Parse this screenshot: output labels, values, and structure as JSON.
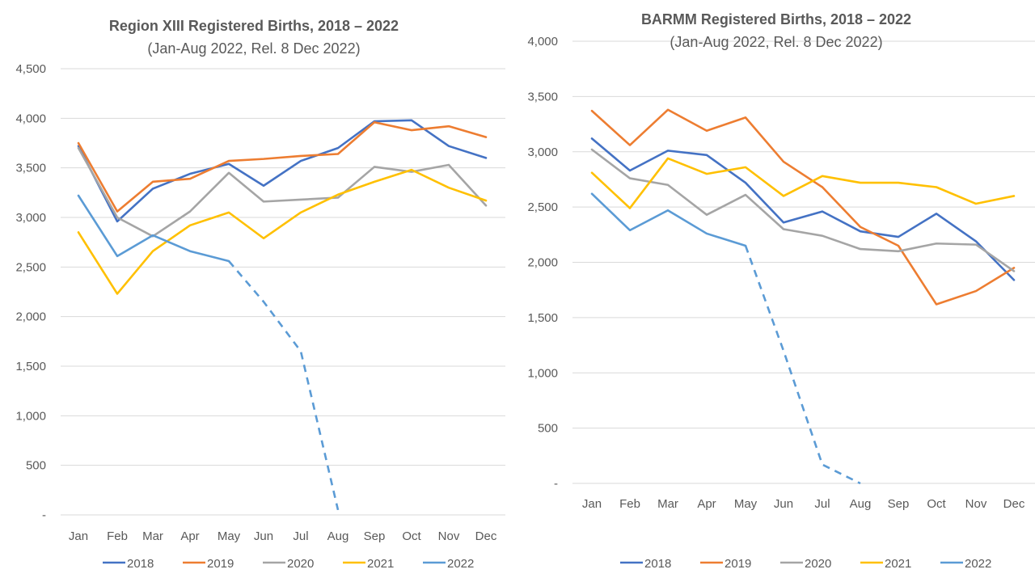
{
  "chart_data": [
    {
      "type": "line",
      "title": "Region XIII Registered Births, 2018 – 2022",
      "subtitle": "(Jan-Aug 2022, Rel. 8 Dec 2022)",
      "xlabel": "",
      "ylabel": "",
      "ylim": [
        0,
        4500
      ],
      "yticks": [
        0,
        500,
        1000,
        1500,
        2000,
        2500,
        3000,
        3500,
        4000,
        4500
      ],
      "ytick_labels": [
        "-",
        "500",
        "1,000",
        "1,500",
        "2,000",
        "2,500",
        "3,000",
        "3,500",
        "4,000",
        "4,500"
      ],
      "grid": true,
      "legend": "bottom",
      "categories": [
        "Jan",
        "Feb",
        "Mar",
        "Apr",
        "May",
        "Jun",
        "Jul",
        "Aug",
        "Sep",
        "Oct",
        "Nov",
        "Dec"
      ],
      "series": [
        {
          "name": "2018",
          "color": "#4472C4",
          "dashed_from": null,
          "values": [
            3720,
            2960,
            3290,
            3440,
            3540,
            3320,
            3570,
            3700,
            3970,
            3980,
            3720,
            3600
          ]
        },
        {
          "name": "2019",
          "color": "#ED7D31",
          "dashed_from": null,
          "values": [
            3750,
            3060,
            3360,
            3390,
            3570,
            3590,
            3620,
            3640,
            3960,
            3880,
            3920,
            3810
          ]
        },
        {
          "name": "2020",
          "color": "#A5A5A5",
          "dashed_from": null,
          "values": [
            3700,
            3000,
            2810,
            3060,
            3450,
            3160,
            3180,
            3200,
            3510,
            3460,
            3530,
            3120
          ]
        },
        {
          "name": "2021",
          "color": "#FFC000",
          "dashed_from": null,
          "values": [
            2850,
            2230,
            2660,
            2920,
            3050,
            2790,
            3050,
            3230,
            3360,
            3480,
            3300,
            3170
          ]
        },
        {
          "name": "2022",
          "color": "#5B9BD5",
          "dashed_from": 4,
          "values": [
            3220,
            2610,
            2820,
            2660,
            2560,
            2150,
            1650,
            50,
            null,
            null,
            null,
            null
          ]
        }
      ]
    },
    {
      "type": "line",
      "title": "BARMM  Registered Births, 2018 – 2022",
      "subtitle": "(Jan-Aug 2022, Rel. 8 Dec 2022)",
      "xlabel": "",
      "ylabel": "",
      "ylim": [
        0,
        4000
      ],
      "yticks": [
        0,
        500,
        1000,
        1500,
        2000,
        2500,
        3000,
        3500,
        4000
      ],
      "ytick_labels": [
        "-",
        "500",
        "1,000",
        "1,500",
        "2,000",
        "2,500",
        "3,000",
        "3,500",
        "4,000"
      ],
      "grid": true,
      "legend": "bottom",
      "categories": [
        "Jan",
        "Feb",
        "Mar",
        "Apr",
        "May",
        "Jun",
        "Jul",
        "Aug",
        "Sep",
        "Oct",
        "Nov",
        "Dec"
      ],
      "series": [
        {
          "name": "2018",
          "color": "#4472C4",
          "dashed_from": null,
          "values": [
            3120,
            2830,
            3010,
            2970,
            2720,
            2360,
            2460,
            2280,
            2230,
            2440,
            2190,
            1840
          ]
        },
        {
          "name": "2019",
          "color": "#ED7D31",
          "dashed_from": null,
          "values": [
            3370,
            3060,
            3380,
            3190,
            3310,
            2910,
            2680,
            2320,
            2150,
            1620,
            1740,
            1950
          ]
        },
        {
          "name": "2020",
          "color": "#A5A5A5",
          "dashed_from": null,
          "values": [
            3020,
            2760,
            2700,
            2430,
            2610,
            2300,
            2240,
            2120,
            2100,
            2170,
            2160,
            1920
          ]
        },
        {
          "name": "2021",
          "color": "#FFC000",
          "dashed_from": null,
          "values": [
            2810,
            2490,
            2940,
            2800,
            2860,
            2600,
            2780,
            2720,
            2720,
            2680,
            2530,
            2600
          ]
        },
        {
          "name": "2022",
          "color": "#5B9BD5",
          "dashed_from": 4,
          "values": [
            2620,
            2290,
            2470,
            2260,
            2150,
            1200,
            170,
            0,
            null,
            null,
            null,
            null
          ]
        }
      ]
    }
  ]
}
